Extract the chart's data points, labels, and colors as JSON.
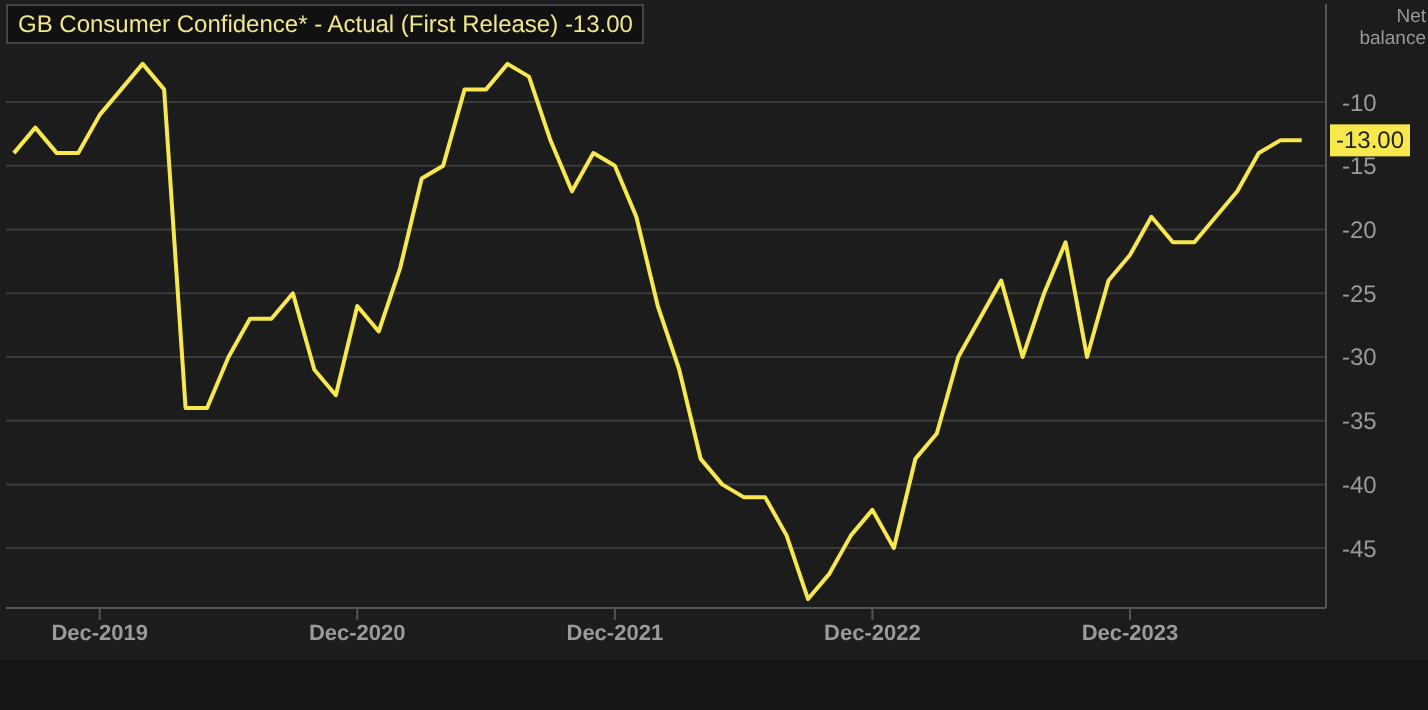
{
  "chart_data": {
    "type": "line",
    "title": "GB Consumer Confidence* - Actual (First Release) -13.00",
    "ylabel": "Net balance",
    "x": [
      "2019-08",
      "2019-09",
      "2019-10",
      "2019-11",
      "2019-12",
      "2020-01",
      "2020-02",
      "2020-03",
      "2020-04",
      "2020-05",
      "2020-06",
      "2020-07",
      "2020-08",
      "2020-09",
      "2020-10",
      "2020-11",
      "2020-12",
      "2021-01",
      "2021-02",
      "2021-03",
      "2021-04",
      "2021-05",
      "2021-06",
      "2021-07",
      "2021-08",
      "2021-09",
      "2021-10",
      "2021-11",
      "2021-12",
      "2022-01",
      "2022-02",
      "2022-03",
      "2022-04",
      "2022-05",
      "2022-06",
      "2022-07",
      "2022-08",
      "2022-09",
      "2022-10",
      "2022-11",
      "2022-12",
      "2023-01",
      "2023-02",
      "2023-03",
      "2023-04",
      "2023-05",
      "2023-06",
      "2023-07",
      "2023-08",
      "2023-09",
      "2023-10",
      "2023-11",
      "2023-12",
      "2024-01",
      "2024-02",
      "2024-03",
      "2024-04",
      "2024-05",
      "2024-06",
      "2024-07",
      "2024-08"
    ],
    "series": [
      {
        "color": "#f7e84e",
        "values": [
          -14,
          -12,
          -14,
          -14,
          -11,
          -9,
          -7,
          -9,
          -34,
          -34,
          -30,
          -27,
          -27,
          -25,
          -31,
          -33,
          -26,
          -28,
          -23,
          -16,
          -15,
          -9,
          -9,
          -7,
          -8,
          -13,
          -17,
          -14,
          -15,
          -19,
          -26,
          -31,
          -38,
          -40,
          -41,
          -41,
          -44,
          -49,
          -47,
          -44,
          -42,
          -45,
          -38,
          -36,
          -30,
          -27,
          -24,
          -30,
          -25,
          -21,
          -30,
          -24,
          -22,
          -19,
          -21,
          -21,
          -19,
          -17,
          -14,
          -13,
          -13
        ]
      }
    ],
    "xlim": [
      "2019-07-20",
      "2024-09-05"
    ],
    "xticks": [
      {
        "value": "2019-12",
        "label": "Dec-2019"
      },
      {
        "value": "2020-12",
        "label": "Dec-2020"
      },
      {
        "value": "2021-12",
        "label": "Dec-2021"
      },
      {
        "value": "2022-12",
        "label": "Dec-2022"
      },
      {
        "value": "2023-12",
        "label": "Dec-2023"
      }
    ],
    "ylim": [
      -49.7,
      -2.3
    ],
    "yticks": [
      -10,
      -15,
      -20,
      -25,
      -30,
      -35,
      -40,
      -45
    ],
    "annotations": [
      {
        "text": "-13.00",
        "x": "2024-08",
        "y": -13
      }
    ],
    "grid": "y"
  }
}
